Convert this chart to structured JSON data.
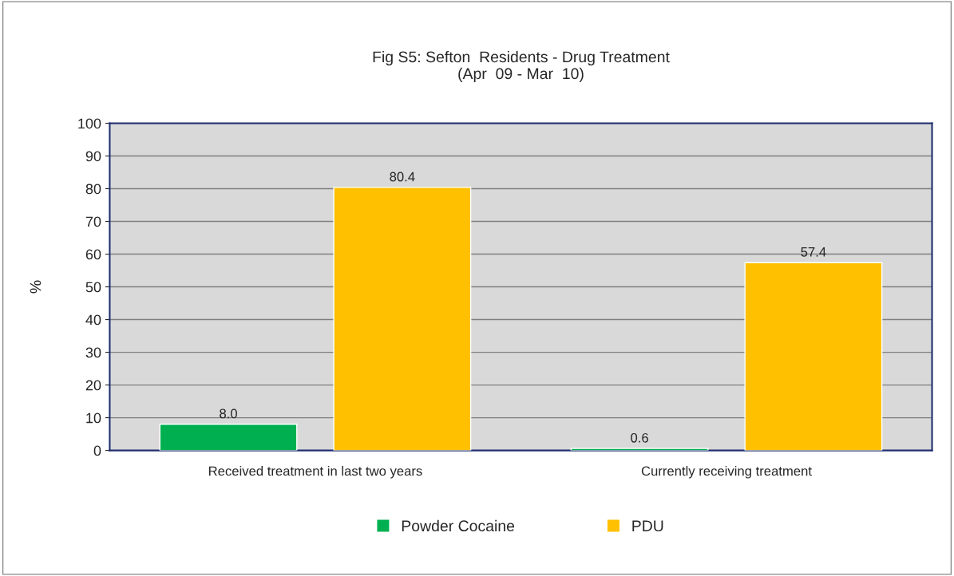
{
  "chart_data": {
    "type": "bar",
    "title": "Fig S5: Sefton  Residents - Drug Treatment\n(Apr  09 - Mar  10)",
    "ylabel": "%",
    "categories": [
      "Received treatment in last two years",
      "Currently receiving treatment"
    ],
    "series": [
      {
        "name": "Powder Cocaine",
        "color": "#00b050",
        "values": [
          8.0,
          0.6
        ],
        "value_labels": [
          "8.0",
          "0.6"
        ]
      },
      {
        "name": "PDU",
        "color": "#ffc000",
        "values": [
          80.4,
          57.4
        ],
        "value_labels": [
          "80.4",
          "57.4"
        ]
      }
    ],
    "ylim": [
      0,
      100
    ],
    "yticks": [
      0,
      10,
      20,
      30,
      40,
      50,
      60,
      70,
      80,
      90,
      100
    ],
    "grid": "y",
    "legend": "bottom"
  }
}
